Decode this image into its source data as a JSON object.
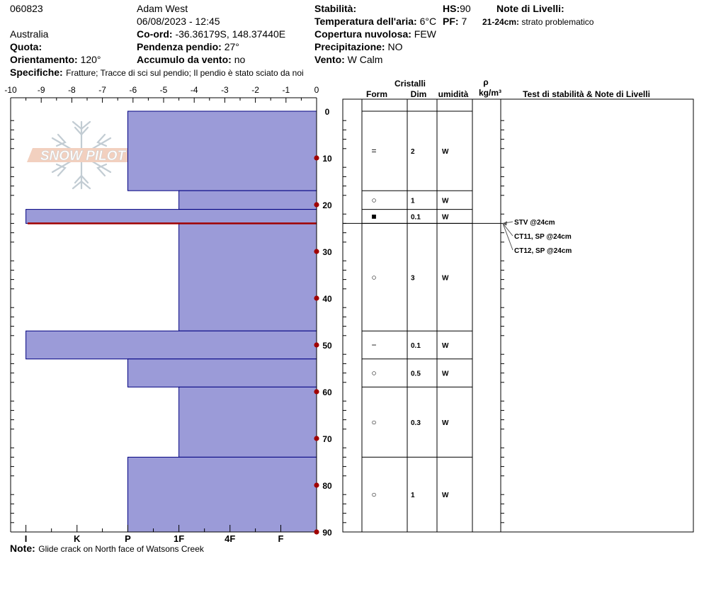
{
  "header": {
    "id": "060823",
    "observer": "Adam West",
    "datetime": "06/08/2023 - 12:45",
    "location": "Australia",
    "coord_label": "Co-ord:",
    "coord_value": "-36.36179S, 148.37440E",
    "quota_label": "Quota:",
    "slope_label": "Pendenza pendio:",
    "slope_value": "27°",
    "aspect_label": "Orientamento:",
    "aspect_value": "120°",
    "wind_loading_label": "Accumulo da vento:",
    "wind_loading_value": "no",
    "specifics_label": "Specifiche:",
    "specifics_value": "Fratture;  Tracce di sci sul pendio;  Il pendio è stato sciato da noi",
    "stability_label": "Stabilità:",
    "hs_label": "HS:",
    "hs_value": "90",
    "air_temp_label": "Temperatura dell'aria:",
    "air_temp_value": "6°C",
    "pf_label": "PF:",
    "pf_value": "7",
    "cloud_label": "Copertura nuvolosa:",
    "cloud_value": "FEW",
    "precip_label": "Precipitazione:",
    "precip_value": "NO",
    "wind_label": "Vento:",
    "wind_value": "W Calm",
    "layer_notes_label": "Note di Livelli:",
    "layer_note_range": "21-24cm:",
    "layer_note_text": "strato problematico"
  },
  "notes": {
    "label": "Note:",
    "text": "Glide crack on North face of Watsons Creek"
  },
  "logo_text": "SNOW PILOT",
  "table_headers": {
    "crystals": "Cristalli",
    "form": "Form",
    "size": "Dim",
    "moisture": "umidità",
    "density_symbol": "ρ",
    "density_unit": "kg/m³",
    "tests_notes": "Test di stabilità & Note di Livelli"
  },
  "stability_tests": [
    {
      "text": "STV @24cm",
      "depth": 24
    },
    {
      "text": "CT11, SP @24cm",
      "depth": 24
    },
    {
      "text": "CT12, SP @24cm",
      "depth": 24
    }
  ],
  "colors": {
    "bar_fill": "#9b9bd8",
    "bar_stroke": "#000080",
    "marker": "#a00000",
    "weak_line": "#a00000"
  },
  "chart_data": {
    "type": "bar",
    "orientation": "horizontal",
    "x_ticks": [
      "-10",
      "-9",
      "-8",
      "-7",
      "-6",
      "-5",
      "-4",
      "-3",
      "-2",
      "-1",
      "0"
    ],
    "xlim": [
      -10,
      0
    ],
    "hardness_ticks": [
      {
        "label": "I",
        "x": -9.5
      },
      {
        "label": "K",
        "x": -7.83
      },
      {
        "label": "P",
        "x": -6.17
      },
      {
        "label": "1F",
        "x": -4.5
      },
      {
        "label": "4F",
        "x": -2.83
      },
      {
        "label": "F",
        "x": -1.17
      }
    ],
    "depth_ticks": [
      "0",
      "10",
      "20",
      "30",
      "40",
      "50",
      "60",
      "70",
      "80",
      "90"
    ],
    "ylim": [
      0,
      90
    ],
    "weak_layer_depth": 24,
    "layers": [
      {
        "top": 0,
        "bottom": 17,
        "hardness": "P",
        "form": "=",
        "size": "2",
        "moisture": "W"
      },
      {
        "top": 17,
        "bottom": 21,
        "hardness": "1F",
        "form": "○",
        "size": "1",
        "moisture": "W"
      },
      {
        "top": 21,
        "bottom": 24,
        "hardness": "I",
        "form": "■",
        "size": "0.1",
        "moisture": "W"
      },
      {
        "top": 24,
        "bottom": 47,
        "hardness": "1F",
        "form": "○",
        "size": "3",
        "moisture": "W"
      },
      {
        "top": 47,
        "bottom": 53,
        "hardness": "I",
        "form": "−",
        "size": "0.1",
        "moisture": "W"
      },
      {
        "top": 53,
        "bottom": 59,
        "hardness": "P",
        "form": "○",
        "size": "0.5",
        "moisture": "W"
      },
      {
        "top": 59,
        "bottom": 74,
        "hardness": "1F",
        "form": "○",
        "size": "0.3",
        "moisture": "W"
      },
      {
        "top": 74,
        "bottom": 90,
        "hardness": "P",
        "form": "○",
        "size": "1",
        "moisture": "W"
      }
    ]
  }
}
